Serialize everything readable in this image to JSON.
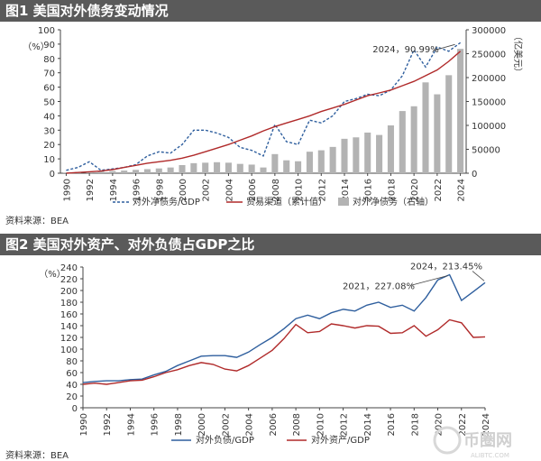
{
  "chart_data": [
    {
      "type": "bar+line",
      "title": "图1  美国对外债务变动情况",
      "source": "资料来源：BEA",
      "x": [
        "1990",
        "1991",
        "1992",
        "1993",
        "1994",
        "1995",
        "1996",
        "1997",
        "1998",
        "1999",
        "2000",
        "2001",
        "2002",
        "2003",
        "2004",
        "2005",
        "2006",
        "2007",
        "2008",
        "2009",
        "2010",
        "2011",
        "2012",
        "2013",
        "2014",
        "2015",
        "2016",
        "2017",
        "2018",
        "2019",
        "2020",
        "2021",
        "2022",
        "2023",
        "2024"
      ],
      "xticks": [
        "1990",
        "1992",
        "1994",
        "1996",
        "1998",
        "2000",
        "2002",
        "2004",
        "2006",
        "2008",
        "2010",
        "2012",
        "2014",
        "2016",
        "2018",
        "2020",
        "2022",
        "2024"
      ],
      "ylabel_left": "%",
      "ylabel_right": "亿美元",
      "ylim_left": [
        0,
        100
      ],
      "ylim_right": [
        0,
        300000
      ],
      "yticks_left": [
        "0",
        "10",
        "20",
        "30",
        "40",
        "50",
        "60",
        "70",
        "80",
        "90",
        "100"
      ],
      "yticks_right": [
        "0",
        "50000",
        "100000",
        "150000",
        "200000",
        "250000",
        "300000"
      ],
      "legend": [
        "对外净债务/GDP",
        "贸易渠道（累计值）",
        "对外净债务（右轴）"
      ],
      "annotation": "2024，90.99%",
      "series": [
        {
          "name": "对外净债务/GDP",
          "axis": "left",
          "style": "dashed",
          "color": "#2f5f9e",
          "values": [
            2,
            4,
            8,
            2,
            3,
            4,
            6,
            12,
            15,
            14,
            20,
            30,
            30,
            28,
            25,
            18,
            16,
            12,
            34,
            22,
            20,
            37,
            35,
            40,
            50,
            52,
            55,
            54,
            58,
            68,
            86,
            74,
            88,
            85,
            91
          ]
        },
        {
          "name": "贸易渠道（累计值）",
          "axis": "left",
          "style": "solid",
          "color": "#b02a2a",
          "values": [
            0,
            0.5,
            1,
            1.5,
            2.5,
            4,
            5.5,
            7,
            8,
            9,
            10.5,
            12.5,
            15,
            17.5,
            20,
            23,
            26,
            29.5,
            32.5,
            35,
            37.5,
            40,
            43,
            45.5,
            48,
            51,
            54,
            56,
            58,
            61,
            64,
            68,
            72,
            78,
            85
          ]
        },
        {
          "name": "对外净债务（右轴）",
          "axis": "right",
          "style": "bar",
          "color": "#b3b3b3",
          "values": [
            1500,
            2500,
            3500,
            4000,
            4500,
            5500,
            7000,
            8500,
            10000,
            12000,
            17000,
            21000,
            22000,
            23000,
            22000,
            19500,
            18000,
            12000,
            40000,
            27000,
            25000,
            45000,
            48000,
            55000,
            72000,
            75000,
            85000,
            80000,
            100000,
            130000,
            140000,
            190000,
            165000,
            205000,
            260000
          ]
        }
      ]
    },
    {
      "type": "line",
      "title": "图2  美国对外资产、对外负债占GDP之比",
      "source": "资料来源：BEA",
      "x": [
        "1990",
        "1991",
        "1992",
        "1993",
        "1994",
        "1995",
        "1996",
        "1997",
        "1998",
        "1999",
        "2000",
        "2001",
        "2002",
        "2003",
        "2004",
        "2005",
        "2006",
        "2007",
        "2008",
        "2009",
        "2010",
        "2011",
        "2012",
        "2013",
        "2014",
        "2015",
        "2016",
        "2017",
        "2018",
        "2019",
        "2020",
        "2021",
        "2022",
        "2023",
        "2024"
      ],
      "xticks": [
        "1990",
        "1992",
        "1994",
        "1996",
        "1998",
        "2000",
        "2002",
        "2004",
        "2006",
        "2008",
        "2010",
        "2012",
        "2014",
        "2016",
        "2018",
        "2020",
        "2022",
        "2024"
      ],
      "ylabel": "%",
      "ylim": [
        0,
        240
      ],
      "yticks": [
        "0",
        "20",
        "40",
        "60",
        "80",
        "100",
        "120",
        "140",
        "160",
        "180",
        "200",
        "220",
        "240"
      ],
      "legend": [
        "对外负债/GDP",
        "对外资产/GDP"
      ],
      "annotations": [
        "2021，227.08%",
        "2024，213.45%"
      ],
      "series": [
        {
          "name": "对外负债/GDP",
          "color": "#2f5f9e",
          "values": [
            43,
            45,
            46,
            46,
            48,
            49,
            56,
            62,
            72,
            80,
            88,
            89,
            89,
            86,
            95,
            108,
            120,
            135,
            152,
            158,
            152,
            162,
            168,
            165,
            175,
            180,
            171,
            175,
            165,
            188,
            218,
            227,
            183,
            198,
            213.45
          ]
        },
        {
          "name": "对外资产/GDP",
          "color": "#b02a2a",
          "values": [
            40,
            42,
            40,
            43,
            46,
            47,
            53,
            60,
            65,
            72,
            77,
            74,
            66,
            63,
            72,
            85,
            98,
            118,
            142,
            128,
            130,
            143,
            140,
            136,
            140,
            139,
            127,
            128,
            140,
            122,
            133,
            150,
            145,
            120,
            121
          ]
        }
      ]
    }
  ],
  "watermark": {
    "brand": "币圈网",
    "site": "ALIBTC.COM"
  }
}
